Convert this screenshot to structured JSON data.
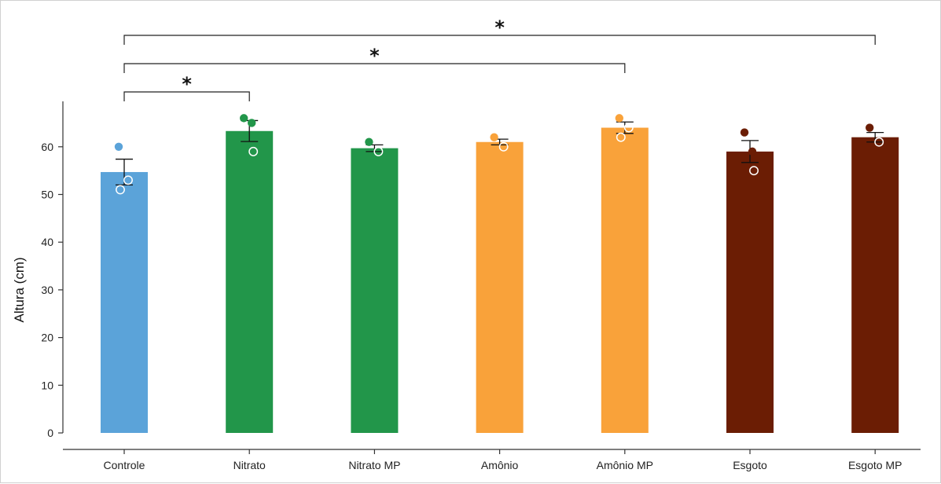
{
  "chart_data": {
    "type": "bar",
    "ylabel": "Altura (cm)",
    "xlabel": "",
    "ylim": [
      0,
      70
    ],
    "yticks": [
      0,
      10,
      20,
      30,
      40,
      50,
      60
    ],
    "grid": false,
    "categories": [
      "Controle",
      "Nitrato",
      "Nitrato MP",
      "Amônio",
      "Amônio MP",
      "Esgoto",
      "Esgoto MP"
    ],
    "values": [
      54.7,
      63.3,
      59.7,
      61.0,
      64.0,
      59.0,
      62.0
    ],
    "error": [
      2.7,
      2.2,
      0.7,
      0.6,
      1.2,
      2.3,
      1.0
    ],
    "colors": [
      "#5ba3d9",
      "#22964a",
      "#22964a",
      "#f9a23a",
      "#f9a23a",
      "#6b1d04",
      "#6b1d04"
    ],
    "points": [
      {
        "filled": [
          60
        ],
        "open": [
          53,
          51
        ]
      },
      {
        "filled": [
          66,
          65
        ],
        "open": [
          59
        ]
      },
      {
        "filled": [
          61
        ],
        "open": [
          59
        ]
      },
      {
        "filled": [
          62
        ],
        "open": [
          60
        ]
      },
      {
        "filled": [
          66
        ],
        "open": [
          64,
          62
        ]
      },
      {
        "filled": [
          63,
          59
        ],
        "open": [
          55
        ]
      },
      {
        "filled": [
          64
        ],
        "open": [
          61
        ]
      }
    ],
    "significance": [
      {
        "from": "Controle",
        "to": "Nitrato",
        "label": "*"
      },
      {
        "from": "Controle",
        "to": "Amônio MP",
        "label": "*"
      },
      {
        "from": "Controle",
        "to": "Esgoto MP",
        "label": "*"
      }
    ]
  }
}
